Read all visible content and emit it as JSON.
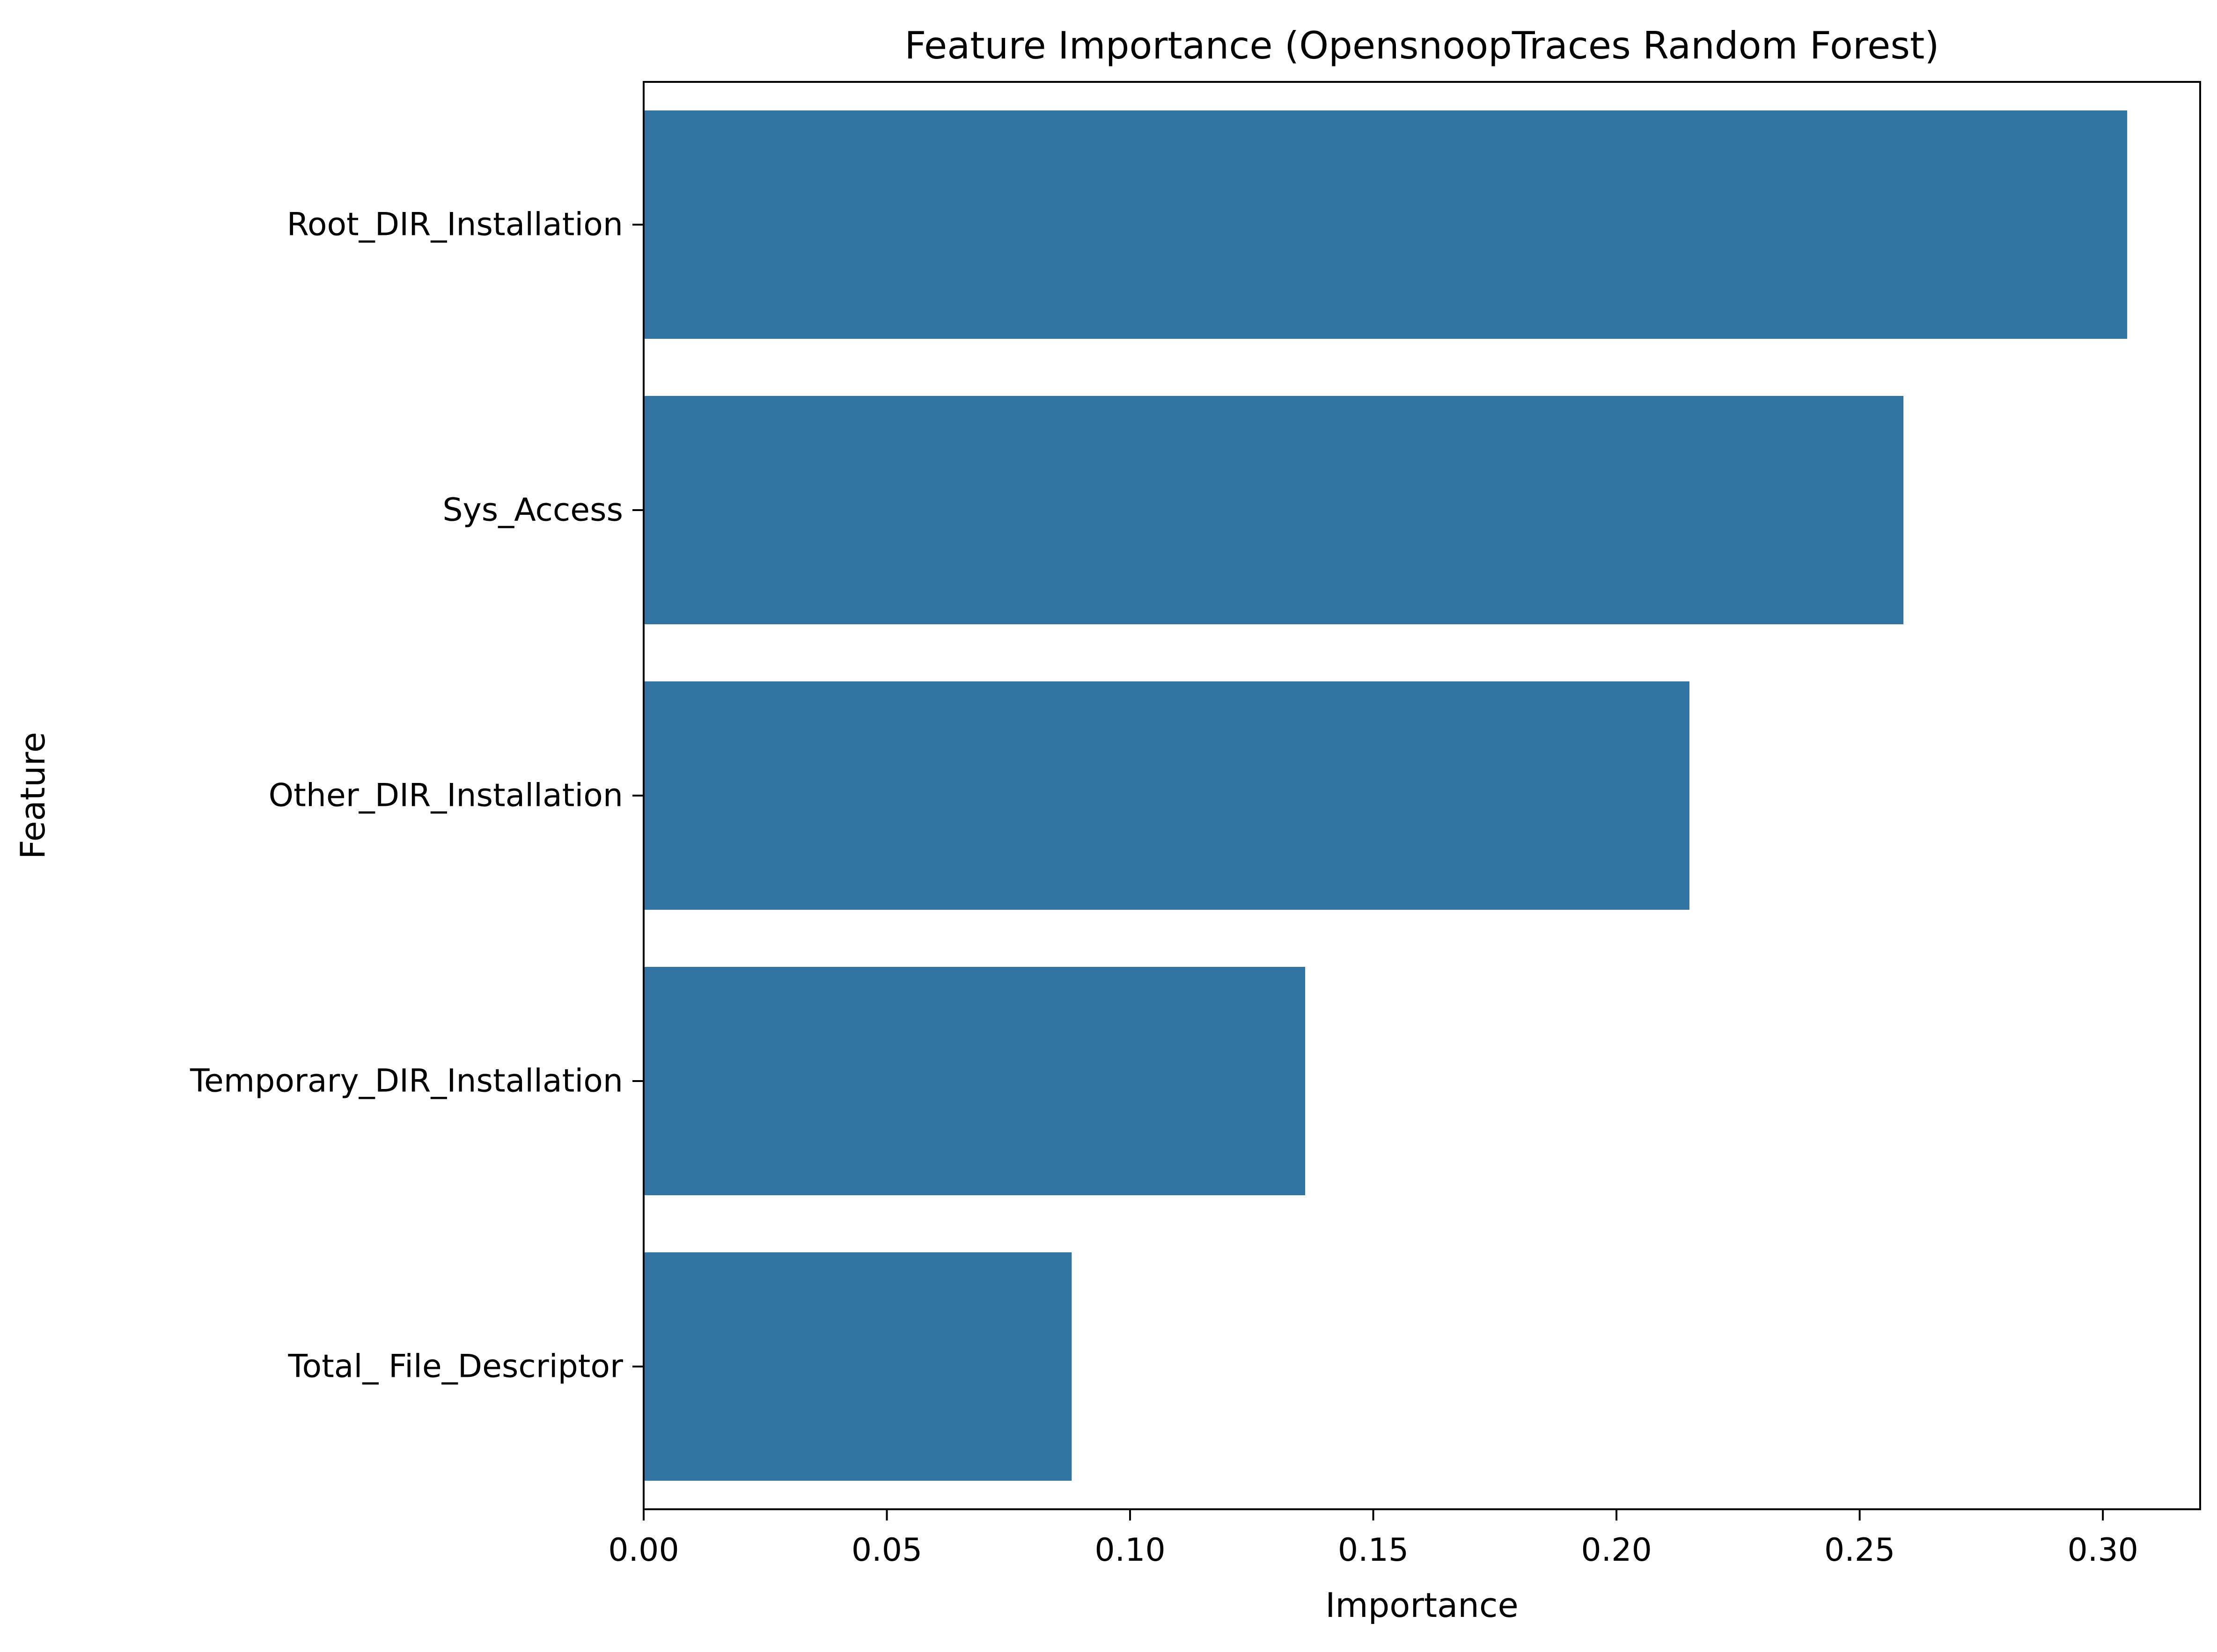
{
  "chart_data": {
    "type": "bar",
    "orientation": "horizontal",
    "title": "Feature Importance (OpensnoopTraces Random Forest)",
    "xlabel": "Importance",
    "ylabel": "Feature",
    "categories": [
      "Root_DIR_Installation",
      "Sys_Access",
      "Other_DIR_Installation",
      "Temporary_DIR_Installation",
      "Total_ File_Descriptor"
    ],
    "values": [
      0.305,
      0.259,
      0.215,
      0.136,
      0.088
    ],
    "xlim": [
      0,
      0.32
    ],
    "xticks": [
      "0.00",
      "0.05",
      "0.10",
      "0.15",
      "0.20",
      "0.25",
      "0.30"
    ],
    "bar_color": "#3274a1",
    "grid": false,
    "legend": "none"
  }
}
